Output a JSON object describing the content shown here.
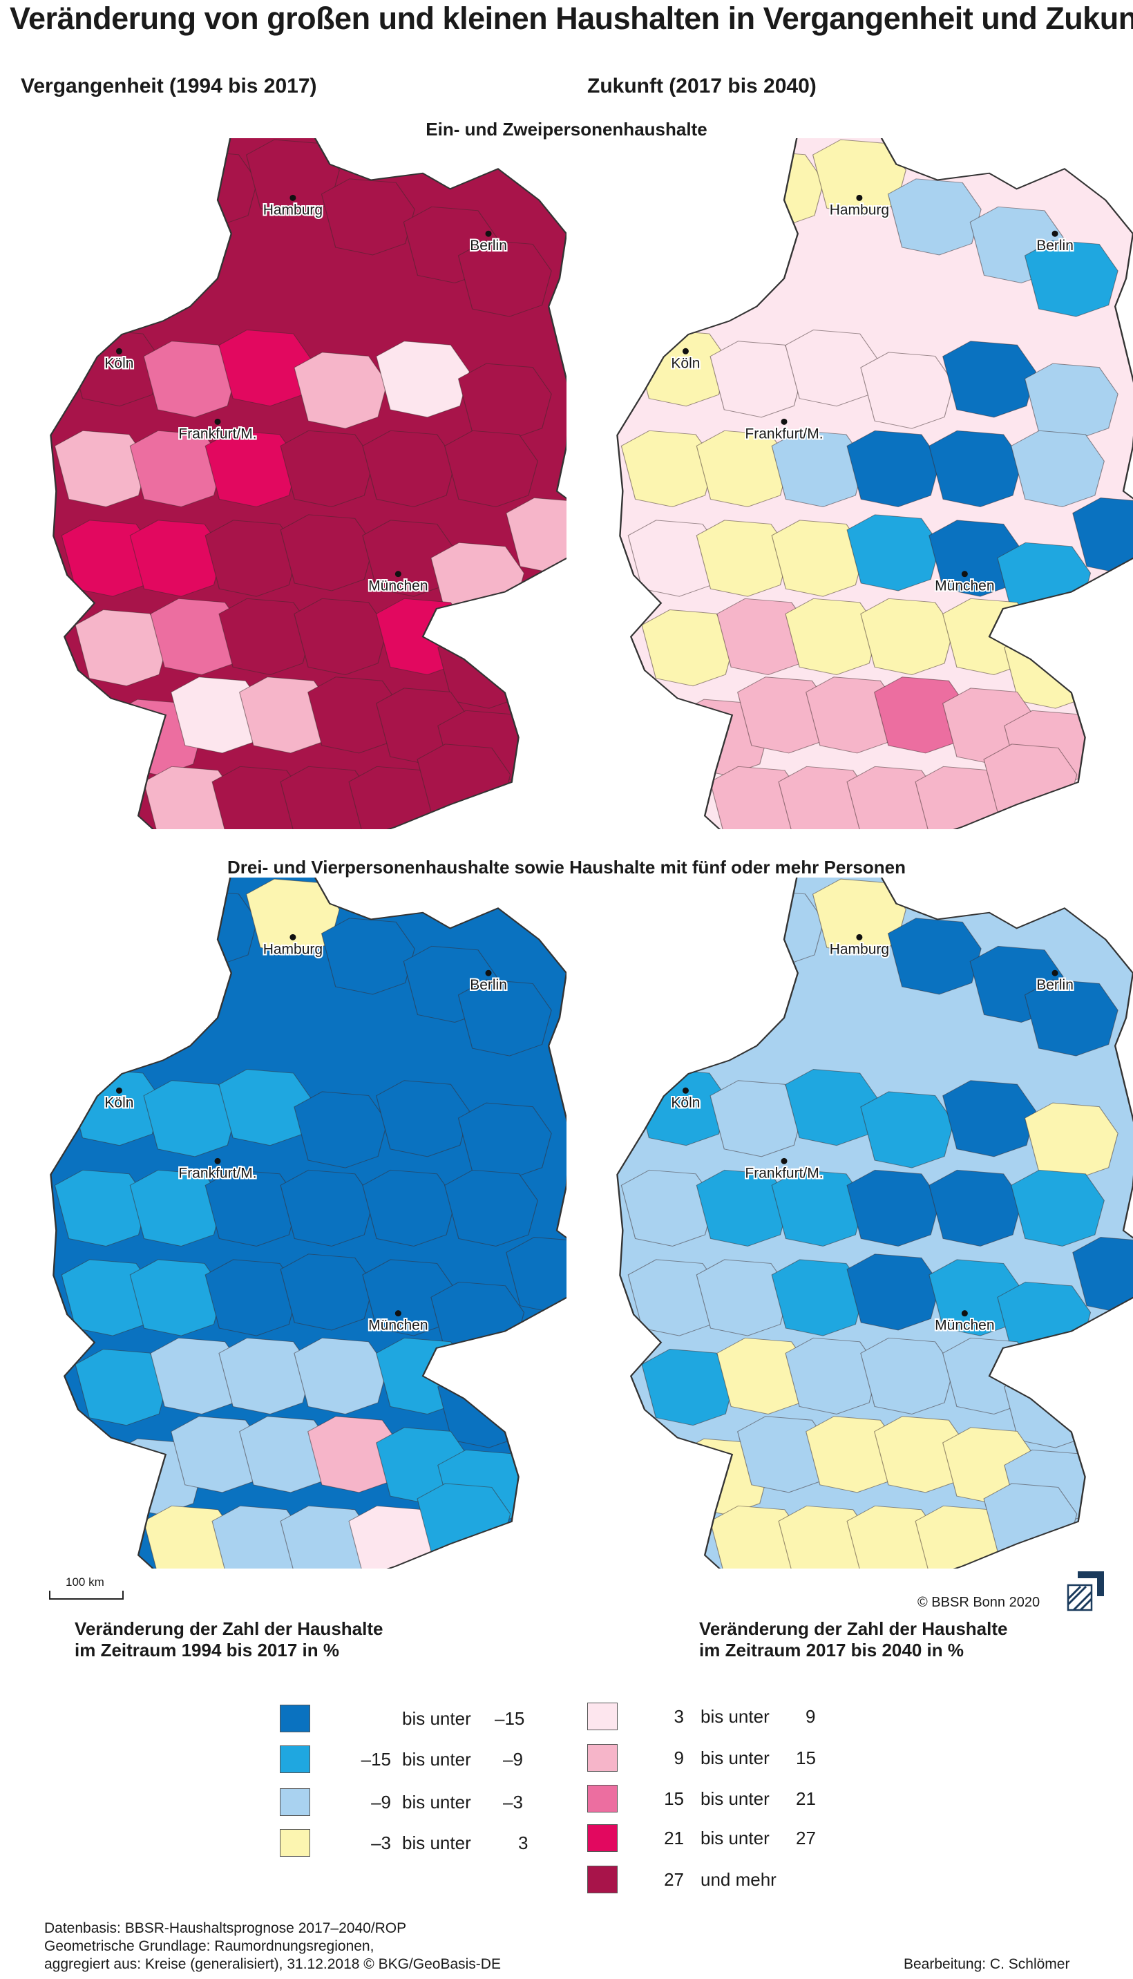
{
  "title": "Veränderung von großen und kleinen Haushalten in Vergangenheit und Zukunft",
  "columns": {
    "past": "Vergangenheit (1994 bis 2017)",
    "future": "Zukunft (2017 bis 2040)"
  },
  "rows": {
    "small": "Ein- und Zweipersonenhaushalte",
    "large": "Drei- und Vierpersonenhaushalte sowie Haushalte mit fünf oder mehr Personen"
  },
  "cities": [
    "Hamburg",
    "Berlin",
    "Köln",
    "Frankfurt/M.",
    "München"
  ],
  "scale_label": "100 km",
  "copyright": "© BBSR Bonn 2020",
  "legend": {
    "title_past": "Veränderung der Zahl der Haushalte\nim Zeitraum 1994 bis 2017 in %",
    "title_past_l1": "Veränderung der Zahl der Haushalte",
    "title_past_l2": "im Zeitraum 1994 bis 2017 in %",
    "title_future_l1": "Veränderung der Zahl der Haushalte",
    "title_future_l2": "im Zeitraum 2017 bis 2040 in %",
    "classes": [
      {
        "from": "",
        "mid": "bis unter",
        "to": "–15",
        "color": "#0a72c0"
      },
      {
        "from": "–15",
        "mid": "bis unter",
        "to": "–9",
        "color": "#1fa7e0"
      },
      {
        "from": "–9",
        "mid": "bis unter",
        "to": "–3",
        "color": "#a9d2f0"
      },
      {
        "from": "–3",
        "mid": "bis unter",
        "to": "3",
        "color": "#fcf5b0"
      },
      {
        "from": "3",
        "mid": "bis unter",
        "to": "9",
        "color": "#fde6ee"
      },
      {
        "from": "9",
        "mid": "bis unter",
        "to": "15",
        "color": "#f6b5c9"
      },
      {
        "from": "15",
        "mid": "bis unter",
        "to": "21",
        "color": "#ec6ea0"
      },
      {
        "from": "21",
        "mid": "bis unter",
        "to": "27",
        "color": "#e2085f"
      },
      {
        "from": "27",
        "mid": "und mehr",
        "to": "",
        "color": "#a8144a"
      }
    ]
  },
  "footer": {
    "line1": "Datenbasis: BBSR-Haushaltsprognose 2017–2040/ROP",
    "line2": "Geometrische Grundlage: Raumordnungsregionen,",
    "line3": "aggregiert aus: Kreise (generalisiert), 31.12.2018 © BKG/GeoBasis-DE",
    "author": "Bearbeitung: C. Schlömer"
  }
}
